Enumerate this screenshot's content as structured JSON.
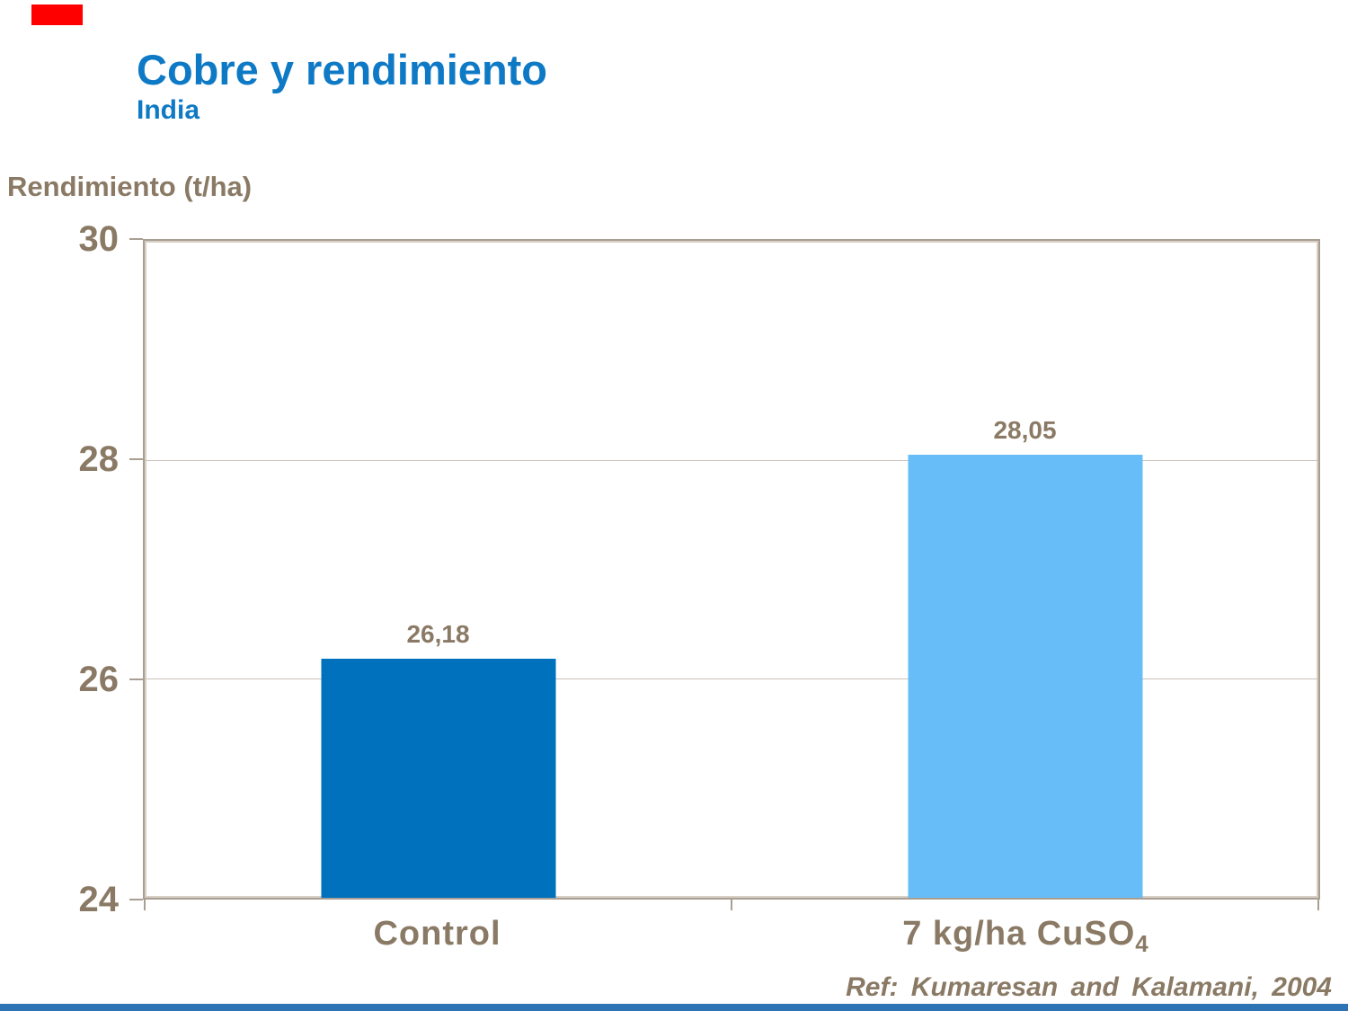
{
  "slide": {
    "title": "Cobre y rendimiento",
    "subtitle": "India",
    "reference": "Ref: Kumaresan and Kalamani, 2004",
    "accent_red_color": "#FF0000",
    "footer_bar_color": "#2E74B5",
    "title_color": "#0E79C5",
    "text_color": "#8A7A65"
  },
  "chart_data": {
    "type": "bar",
    "title": "",
    "ylabel": "Rendimiento (t/ha)",
    "xlabel": "",
    "categories": [
      "Control",
      "7 kg/ha CuSO4"
    ],
    "category_display": [
      {
        "text": "Control",
        "sub": ""
      },
      {
        "text": "7 kg/ha CuSO",
        "sub": "4"
      }
    ],
    "values": [
      26.18,
      28.05
    ],
    "value_labels": [
      "26,18",
      "28,05"
    ],
    "ylim": [
      24,
      30
    ],
    "yticks": [
      24,
      26,
      28,
      30
    ],
    "grid": "horizontal gridlines at interior ticks",
    "legend": "none",
    "bar_colors": [
      "#0071BC",
      "#66BDF8"
    ],
    "axis_color": "#A99E92",
    "gridline_color": "#CBC2B8"
  }
}
